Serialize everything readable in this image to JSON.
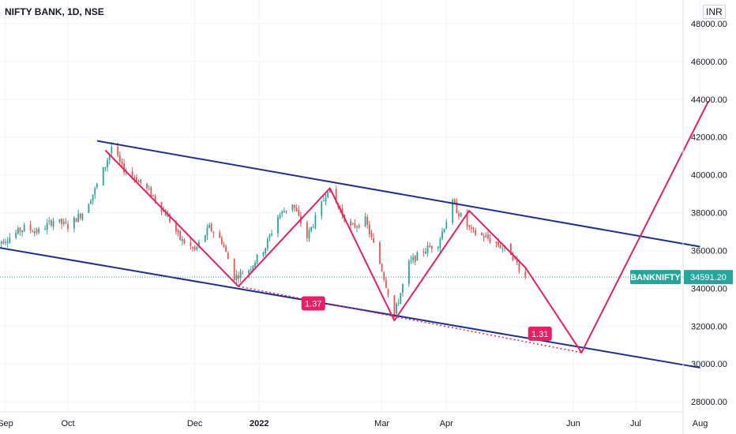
{
  "header": {
    "title": "NIFTY BANK, 1D, NSE",
    "currency": "INR"
  },
  "chart_data": {
    "type": "candlestick",
    "title": "NIFTY BANK, 1D, NSE",
    "ylim": [
      26500,
      48500
    ],
    "yticks": [
      "28000.00",
      "30000.00",
      "32000.00",
      "34000.00",
      "36000.00",
      "38000.00",
      "40000.00",
      "42000.00",
      "44000.00",
      "46000.00",
      "48000.00"
    ],
    "yticks_values": [
      28000,
      30000,
      32000,
      34000,
      36000,
      38000,
      40000,
      42000,
      44000,
      46000,
      48000
    ],
    "xticks": [
      {
        "label": "Sep",
        "date": "2021-09-01"
      },
      {
        "label": "Oct",
        "date": "2021-10-01"
      },
      {
        "label": "Dec",
        "date": "2021-12-01"
      },
      {
        "label": "2022",
        "date": "2022-01-01",
        "bold": true
      },
      {
        "label": "Mar",
        "date": "2022-03-01"
      },
      {
        "label": "Apr",
        "date": "2022-04-01"
      },
      {
        "label": "Jun",
        "date": "2022-06-01"
      },
      {
        "label": "Jul",
        "date": "2022-07-01"
      },
      {
        "label": "Aug",
        "date": "2022-08-01"
      }
    ],
    "price_path": [
      [
        "2021-08-26",
        36300
      ],
      [
        "2021-09-03",
        36700
      ],
      [
        "2021-09-10",
        37200
      ],
      [
        "2021-09-17",
        37000
      ],
      [
        "2021-09-24",
        37600
      ],
      [
        "2021-10-01",
        37300
      ],
      [
        "2021-10-08",
        38000
      ],
      [
        "2021-10-14",
        39200
      ],
      [
        "2021-10-19",
        40500
      ],
      [
        "2021-10-22",
        41500
      ],
      [
        "2021-10-27",
        40400
      ],
      [
        "2021-11-03",
        39800
      ],
      [
        "2021-11-10",
        39000
      ],
      [
        "2021-11-18",
        37800
      ],
      [
        "2021-11-24",
        36600
      ],
      [
        "2021-12-01",
        36000
      ],
      [
        "2021-12-08",
        37200
      ],
      [
        "2021-12-14",
        36500
      ],
      [
        "2021-12-20",
        34600
      ],
      [
        "2021-12-27",
        35000
      ],
      [
        "2022-01-04",
        36200
      ],
      [
        "2022-01-10",
        37800
      ],
      [
        "2022-01-17",
        38500
      ],
      [
        "2022-01-24",
        36700
      ],
      [
        "2022-01-31",
        38400
      ],
      [
        "2022-02-03",
        39300
      ],
      [
        "2022-02-08",
        38300
      ],
      [
        "2022-02-14",
        37200
      ],
      [
        "2022-02-21",
        37600
      ],
      [
        "2022-03-01",
        35000
      ],
      [
        "2022-03-07",
        32600
      ],
      [
        "2022-03-14",
        35300
      ],
      [
        "2022-03-21",
        36000
      ],
      [
        "2022-03-28",
        36400
      ],
      [
        "2022-04-04",
        38500
      ],
      [
        "2022-04-08",
        37800
      ],
      [
        "2022-04-13",
        37000
      ],
      [
        "2022-04-20",
        36700
      ],
      [
        "2022-04-26",
        36300
      ],
      [
        "2022-05-02",
        35900
      ],
      [
        "2022-05-06",
        35100
      ],
      [
        "2022-05-09",
        34591
      ]
    ],
    "last_price": {
      "symbol": "BANKNIFTY",
      "value": "34591.20",
      "numeric": 34591.2
    },
    "channel_upper": {
      "start": [
        "2021-10-15",
        41800
      ],
      "end": [
        "2022-08-01",
        36200
      ]
    },
    "channel_lower": {
      "start": [
        "2021-08-26",
        36200
      ],
      "end": [
        "2022-08-01",
        29800
      ]
    },
    "zigzag": [
      [
        "2021-10-19",
        41300
      ],
      [
        "2021-12-22",
        34100
      ],
      [
        "2022-02-04",
        39300
      ],
      [
        "2022-03-07",
        32300
      ],
      [
        "2022-04-12",
        38100
      ],
      [
        "2022-05-09",
        35100
      ],
      [
        "2022-06-05",
        30600
      ],
      [
        "2022-08-05",
        43900
      ]
    ],
    "projection_dotted": {
      "start": [
        "2021-12-22",
        34100
      ],
      "end": [
        "2022-06-05",
        30600
      ]
    },
    "annotations": [
      {
        "text": "1.37",
        "at": [
          "2022-01-27",
          33200
        ]
      },
      {
        "text": "1.31",
        "at": [
          "2022-05-16",
          31600
        ]
      }
    ],
    "colors": {
      "up": "#26a69a",
      "down": "#ef5350",
      "channel": "#1f2f8c",
      "zigzag": "#e91e63",
      "label_bg": "#e91e63",
      "price_tag": "#26a69a",
      "grid": "#f0f3fa",
      "axis_text": "#131722"
    },
    "grid": true
  }
}
